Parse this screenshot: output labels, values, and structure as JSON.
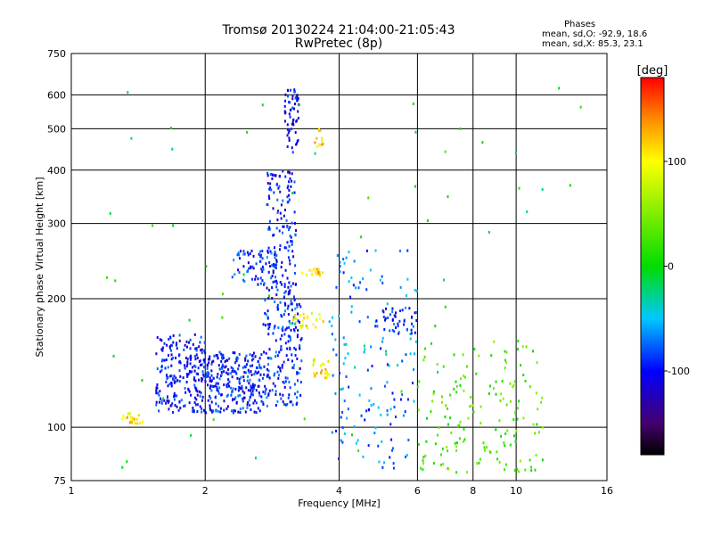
{
  "header": {
    "title": "Tromsø 20130224 21:04:00-21:05:43",
    "subtitle": "RwPretec (8p)"
  },
  "phase_info": {
    "heading": "Phases",
    "line_o": "mean, sd,O: -92.9, 18.6",
    "line_x": "mean, sd,X: 85.3, 23.1"
  },
  "colorbar": {
    "label": "[deg]",
    "range": [
      -180,
      180
    ],
    "ticks": [
      100,
      0,
      -100
    ],
    "tick_labels": [
      "100",
      "0",
      "-100"
    ]
  },
  "chart_data": {
    "type": "scatter",
    "xlabel": "Frequency [MHz]",
    "ylabel": "Stationary phase Virtual Height [km]",
    "x_scale": "log",
    "y_scale": "log",
    "xlim": [
      1,
      16
    ],
    "ylim": [
      75,
      750
    ],
    "x_ticks": [
      1,
      2,
      4,
      6,
      8,
      10,
      16
    ],
    "x_tick_labels": [
      "1",
      "2",
      "4",
      "6",
      "8",
      "10",
      "16"
    ],
    "y_ticks": [
      75,
      100,
      200,
      300,
      400,
      500,
      600,
      750
    ],
    "y_tick_labels": [
      "75",
      "100",
      "200",
      "300",
      "400",
      "500",
      "600",
      "750"
    ],
    "grid": true,
    "clusters": [
      {
        "f0": 1.55,
        "f1": 2.0,
        "h0": 108,
        "h1": 165,
        "phase": -100,
        "count": 220
      },
      {
        "f0": 2.0,
        "f1": 2.7,
        "h0": 108,
        "h1": 150,
        "phase": -95,
        "count": 260
      },
      {
        "f0": 2.7,
        "f1": 3.3,
        "h0": 112,
        "h1": 200,
        "phase": -90,
        "count": 180
      },
      {
        "f0": 2.75,
        "f1": 3.2,
        "h0": 200,
        "h1": 400,
        "phase": -100,
        "count": 150
      },
      {
        "f0": 3.0,
        "f1": 3.25,
        "h0": 440,
        "h1": 620,
        "phase": -105,
        "count": 60
      },
      {
        "f0": 2.3,
        "f1": 2.9,
        "h0": 215,
        "h1": 260,
        "phase": -90,
        "count": 70
      },
      {
        "f0": 1.3,
        "f1": 1.45,
        "h0": 102,
        "h1": 108,
        "phase": 110,
        "count": 20
      },
      {
        "f0": 3.1,
        "f1": 3.7,
        "h0": 170,
        "h1": 185,
        "phase": 100,
        "count": 25
      },
      {
        "f0": 3.3,
        "f1": 3.7,
        "h0": 225,
        "h1": 235,
        "phase": 110,
        "count": 18
      },
      {
        "f0": 3.5,
        "f1": 3.8,
        "h0": 130,
        "h1": 145,
        "phase": 110,
        "count": 25
      },
      {
        "f0": 3.5,
        "f1": 3.7,
        "h0": 450,
        "h1": 500,
        "phase": 110,
        "count": 12
      },
      {
        "f0": 3.8,
        "f1": 6.0,
        "h0": 80,
        "h1": 260,
        "phase": -70,
        "count": 150
      },
      {
        "f0": 4.8,
        "f1": 6.0,
        "h0": 165,
        "h1": 190,
        "phase": -100,
        "count": 40
      },
      {
        "f0": 6.0,
        "f1": 11.5,
        "h0": 78,
        "h1": 160,
        "phase": 30,
        "count": 160
      },
      {
        "f0": 1.2,
        "f1": 14.0,
        "h0": 80,
        "h1": 640,
        "phase": 0,
        "count": 60
      }
    ]
  }
}
